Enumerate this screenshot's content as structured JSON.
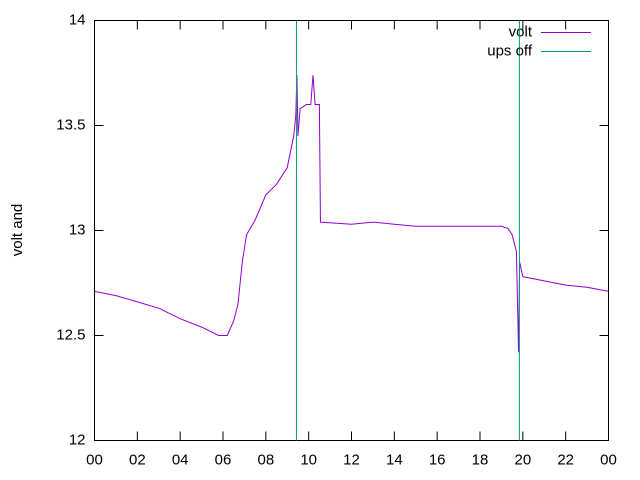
{
  "chart_data": {
    "type": "line",
    "ylabel": "volt and",
    "xlim": [
      0,
      24
    ],
    "ylim": [
      12,
      14
    ],
    "xticks": [
      {
        "value": 0,
        "label": "00"
      },
      {
        "value": 2,
        "label": "02"
      },
      {
        "value": 4,
        "label": "04"
      },
      {
        "value": 6,
        "label": "06"
      },
      {
        "value": 8,
        "label": "08"
      },
      {
        "value": 10,
        "label": "10"
      },
      12,
      14,
      16,
      18,
      20,
      22,
      {
        "value": 24,
        "label": "00"
      }
    ],
    "yticks": [
      12,
      12.5,
      13,
      13.5,
      14
    ],
    "legend": "top-right",
    "series": [
      {
        "name": "volt",
        "color": "#9400d3",
        "x": [
          0,
          1,
          2,
          3,
          4,
          5,
          5.8,
          6.2,
          6.5,
          6.7,
          6.9,
          7.1,
          7.5,
          8,
          8.5,
          9,
          9.3,
          9.4,
          9.45,
          9.5,
          9.6,
          9.9,
          10.1,
          10.2,
          10.3,
          10.5,
          10.55,
          12,
          13,
          14,
          15,
          17,
          18,
          19,
          19.3,
          19.5,
          19.7,
          19.8,
          19.85,
          20,
          20.5,
          21,
          22,
          23,
          24
        ],
        "values": [
          12.71,
          12.69,
          12.66,
          12.63,
          12.58,
          12.54,
          12.5,
          12.5,
          12.57,
          12.65,
          12.85,
          12.98,
          13.05,
          13.17,
          13.22,
          13.3,
          13.45,
          13.55,
          13.74,
          13.45,
          13.58,
          13.6,
          13.6,
          13.74,
          13.6,
          13.6,
          13.04,
          13.03,
          13.04,
          13.03,
          13.02,
          13.02,
          13.02,
          13.02,
          13.01,
          12.98,
          12.9,
          12.42,
          12.85,
          12.78,
          12.77,
          12.76,
          12.74,
          12.73,
          12.71
        ]
      },
      {
        "name": "ups off",
        "color": "#009e73",
        "type": "vline",
        "x": [
          9.43,
          19.84
        ]
      }
    ]
  }
}
